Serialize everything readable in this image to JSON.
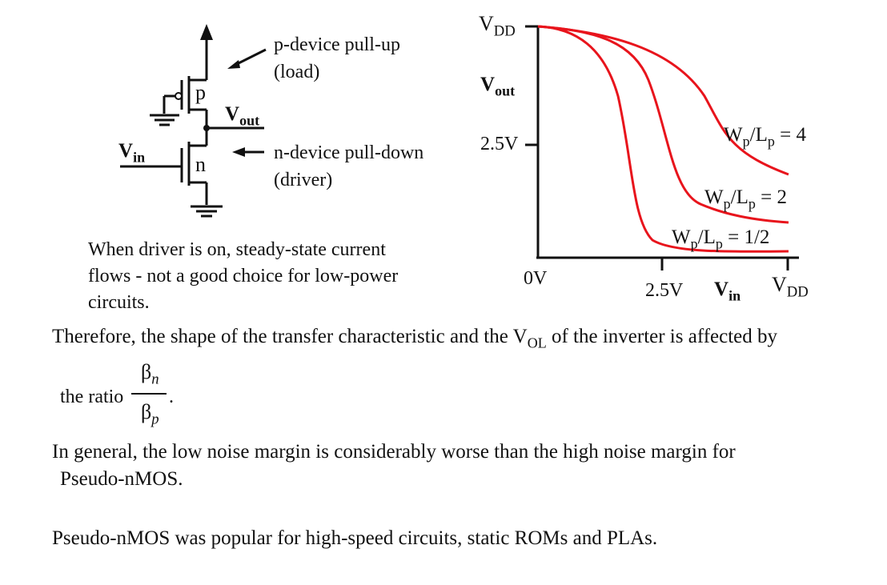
{
  "circuit": {
    "p_label": "p",
    "n_label": "n",
    "vout": {
      "main": "V",
      "sub": "out"
    },
    "vin": {
      "main": "V",
      "sub": "in"
    },
    "pull_up_line1": "p-device pull-up",
    "pull_up_line2": "(load)",
    "pull_down_line1": "n-device pull-down",
    "pull_down_line2": "(driver)"
  },
  "note": {
    "line1": "When driver is on, steady-state current",
    "line2": "flows - not a good choice for low-power",
    "line3": "circuits."
  },
  "graph": {
    "y_top": {
      "main": "V",
      "sub": "DD"
    },
    "y_label": {
      "main": "V",
      "sub": "out"
    },
    "y_mid": "2.5V",
    "origin": "0V",
    "x_mid": "2.5V",
    "x_label": {
      "main": "V",
      "sub": "in"
    },
    "x_right": {
      "main": "V",
      "sub": "DD"
    },
    "curve_color": "#e8141c",
    "curves": [
      {
        "w": "W",
        "wsub": "p",
        "slash": "/",
        "l": "L",
        "lsub": "p",
        "value": " = 4"
      },
      {
        "w": "W",
        "wsub": "p",
        "slash": "/",
        "l": "L",
        "lsub": "p",
        "value": " = 2"
      },
      {
        "w": "W",
        "wsub": "p",
        "slash": "/",
        "l": "L",
        "lsub": "p",
        "value": " = 1/2"
      }
    ]
  },
  "body_text": {
    "para1_a": "Therefore, the shape of the transfer characteristic and the V",
    "para1_sub": "OL",
    "para1_b": " of the inverter is affected by",
    "ratio_prefix": "the ratio",
    "beta": "β",
    "num_sub": "n",
    "den_sub": "p",
    "ratio_suffix": ".",
    "para2_line1": "In general, the low noise margin is considerably worse than the high noise margin for",
    "para2_line2": "Pseudo-nMOS.",
    "para3": "Pseudo-nMOS was popular for high-speed circuits, static ROMs and PLAs."
  }
}
